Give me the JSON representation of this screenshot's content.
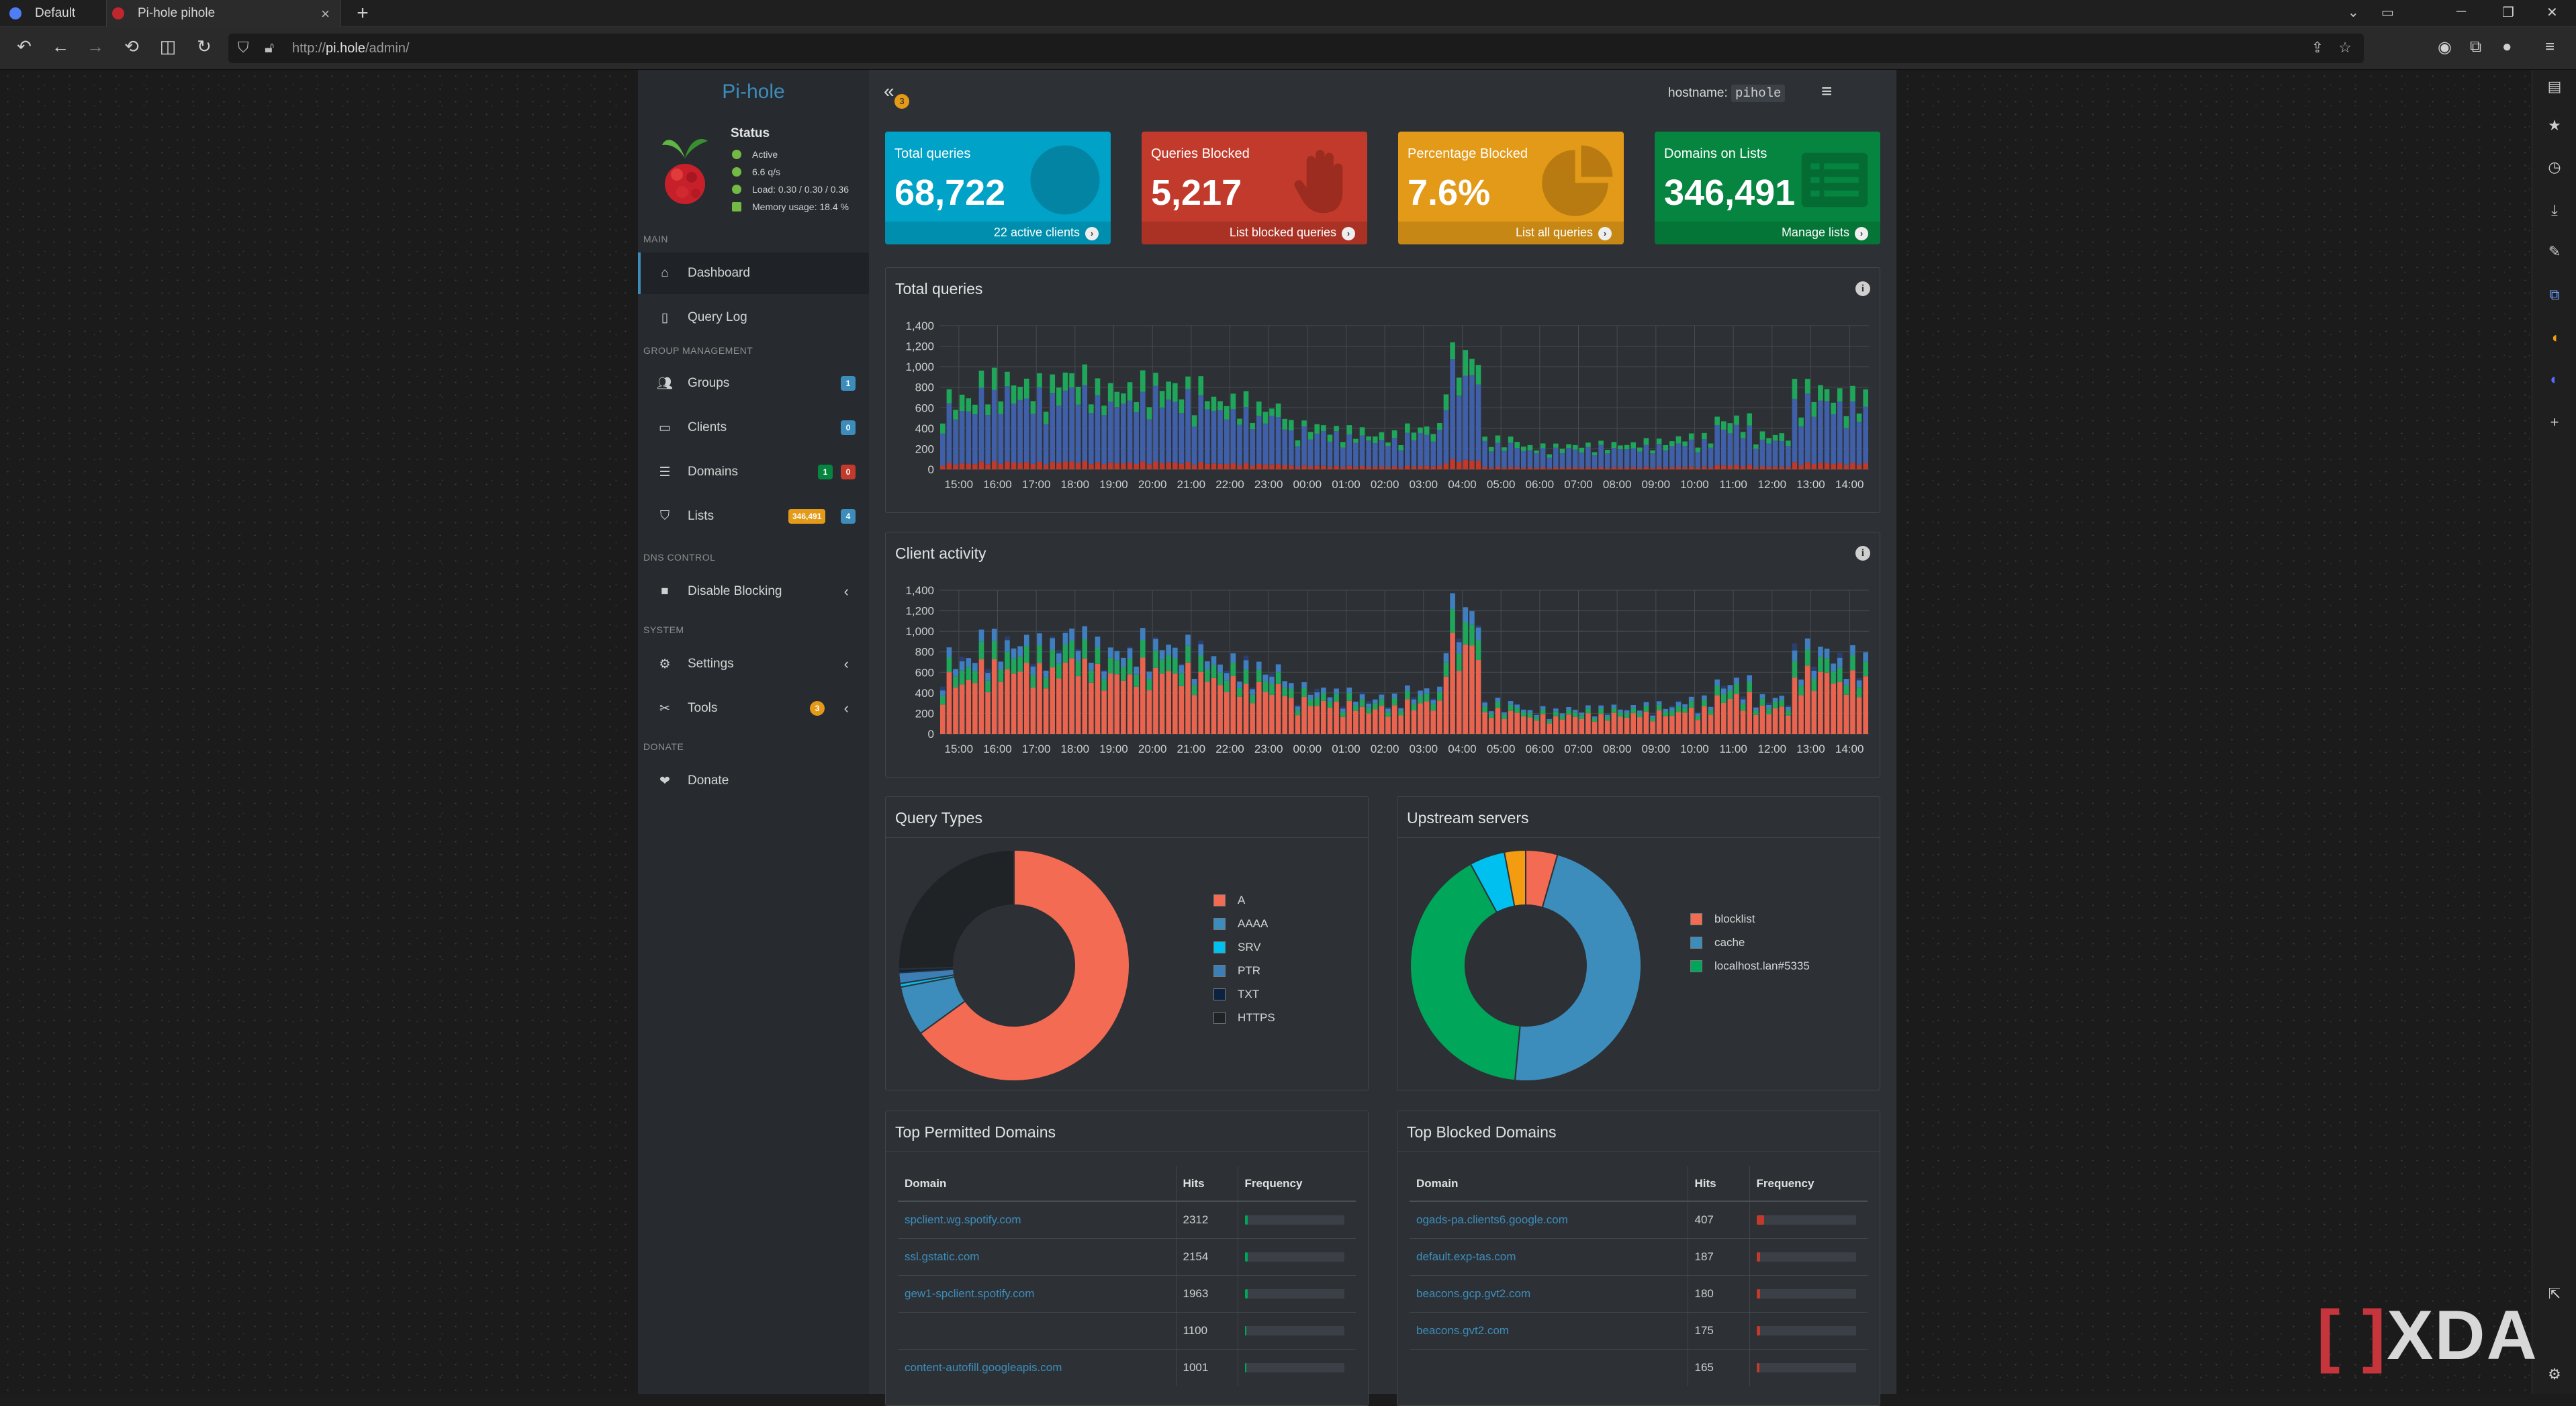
{
  "browser": {
    "tabs": [
      {
        "label": "Default"
      },
      {
        "label": "Pi-hole pihole"
      }
    ],
    "url_prefix": "http://",
    "url_host": "pi.hole",
    "url_path": "/admin/"
  },
  "app": {
    "logo_a": "Pi-",
    "logo_b": "hole",
    "status": {
      "title": "Status",
      "lines": [
        "Active",
        "6.6 q/s",
        "Load: 0.30 / 0.30 / 0.36",
        "Memory usage: 18.4 %"
      ]
    },
    "hostname_label": "hostname:",
    "hostname": "pihole",
    "collapse_badge": "3"
  },
  "sidebar": {
    "sections": {
      "main": "MAIN",
      "group": "GROUP MANAGEMENT",
      "dns": "DNS CONTROL",
      "system": "SYSTEM",
      "donate": "DONATE"
    },
    "items": [
      {
        "label": "Dashboard",
        "icon": "home-icon"
      },
      {
        "label": "Query Log",
        "icon": "file-icon"
      },
      {
        "label": "Groups",
        "icon": "users-icon",
        "badge": "1"
      },
      {
        "label": "Clients",
        "icon": "laptop-icon",
        "badge": "0"
      },
      {
        "label": "Domains",
        "icon": "list-icon",
        "badge_a": "1",
        "badge_b": "0"
      },
      {
        "label": "Lists",
        "icon": "shield-icon",
        "badge_a": "346,491",
        "badge_b": "4"
      },
      {
        "label": "Disable Blocking",
        "icon": "stop-icon"
      },
      {
        "label": "Settings",
        "icon": "gears-icon"
      },
      {
        "label": "Tools",
        "icon": "tools-icon",
        "badge": "3"
      },
      {
        "label": "Donate",
        "icon": "donate-icon"
      }
    ]
  },
  "stats": [
    {
      "label": "Total queries",
      "value": "68,722",
      "footer": "22 active clients",
      "color": "#00a2c7"
    },
    {
      "label": "Queries Blocked",
      "value": "5,217",
      "footer": "List blocked queries",
      "color": "#c23a2b"
    },
    {
      "label": "Percentage Blocked",
      "value": "7.6%",
      "footer": "List all queries",
      "color": "#e39a18"
    },
    {
      "label": "Domains on Lists",
      "value": "346,491",
      "footer": "Manage lists",
      "color": "#05853f"
    }
  ],
  "panels": {
    "total_queries": "Total queries",
    "client_activity": "Client activity",
    "query_types": "Query Types",
    "upstream": "Upstream servers",
    "top_permitted": "Top Permitted Domains",
    "top_blocked": "Top Blocked Domains"
  },
  "chart_data": [
    {
      "type": "bar",
      "title": "Total queries",
      "x_ticks": [
        "15:00",
        "16:00",
        "17:00",
        "18:00",
        "19:00",
        "20:00",
        "21:00",
        "22:00",
        "23:00",
        "00:00",
        "01:00",
        "02:00",
        "03:00",
        "04:00",
        "05:00",
        "06:00",
        "07:00",
        "08:00",
        "09:00",
        "10:00",
        "11:00",
        "12:00",
        "13:00",
        "14:00"
      ],
      "y_ticks": [
        "0",
        "200",
        "400",
        "600",
        "800",
        "1,000",
        "1,200",
        "1,400"
      ],
      "ylim": [
        0,
        1400
      ],
      "series_colors": [
        "#c0392b",
        "#3f5fa8",
        "#1fa65a"
      ],
      "hourly_totals": [
        620,
        780,
        740,
        820,
        700,
        760,
        720,
        600,
        540,
        380,
        340,
        300,
        360,
        980,
        260,
        200,
        210,
        220,
        240,
        280,
        430,
        300,
        700,
        640
      ]
    },
    {
      "type": "bar",
      "title": "Client activity",
      "x_ticks": [
        "15:00",
        "16:00",
        "17:00",
        "18:00",
        "19:00",
        "20:00",
        "21:00",
        "22:00",
        "23:00",
        "00:00",
        "01:00",
        "02:00",
        "03:00",
        "04:00",
        "05:00",
        "06:00",
        "07:00",
        "08:00",
        "09:00",
        "10:00",
        "11:00",
        "12:00",
        "13:00",
        "14:00"
      ],
      "y_ticks": [
        "0",
        "200",
        "400",
        "600",
        "800",
        "1,000",
        "1,200",
        "1,400"
      ],
      "ylim": [
        0,
        1400
      ],
      "series_colors": [
        "#e8644f",
        "#1fa65a",
        "#3f7fc0",
        "#2c3e70"
      ],
      "hourly_totals": [
        640,
        780,
        760,
        840,
        700,
        760,
        720,
        600,
        540,
        380,
        340,
        300,
        360,
        1020,
        260,
        200,
        210,
        220,
        240,
        280,
        430,
        300,
        700,
        640
      ]
    },
    {
      "type": "pie",
      "title": "Query Types",
      "labels": [
        "A",
        "AAAA",
        "SRV",
        "PTR",
        "TXT",
        "HTTPS"
      ],
      "colors": [
        "#f46b54",
        "#3c8dbc",
        "#00c0ef",
        "#3c7fb7",
        "#0b2240",
        "#1f2326"
      ],
      "values": [
        65.0,
        7.0,
        0.5,
        1.5,
        0.5,
        25.5
      ]
    },
    {
      "type": "pie",
      "title": "Upstream servers",
      "labels": [
        "blocklist",
        "cache",
        "localhost.lan#5335"
      ],
      "colors": [
        "#f46b54",
        "#3c8dbc",
        "#00a65a"
      ],
      "values": [
        4.5,
        47.5,
        41.0
      ],
      "extra_colors": [
        "#00c0ef",
        "#f39c12"
      ],
      "extra_values": [
        5.0,
        3.0
      ]
    }
  ],
  "top_permitted": {
    "headers": [
      "Domain",
      "Hits",
      "Frequency"
    ],
    "rows": [
      {
        "domain": "spclient.wg.spotify.com",
        "hits": "2312",
        "freq": 0.03
      },
      {
        "domain": "ssl.gstatic.com",
        "hits": "2154",
        "freq": 0.03
      },
      {
        "domain": "gew1-spclient.spotify.com",
        "hits": "1963",
        "freq": 0.03
      },
      {
        "domain": "",
        "hits": "1100",
        "freq": 0.02
      },
      {
        "domain": "content-autofill.googleapis.com",
        "hits": "1001",
        "freq": 0.02
      }
    ],
    "bar_color": "#00a65a"
  },
  "top_blocked": {
    "headers": [
      "Domain",
      "Hits",
      "Frequency"
    ],
    "rows": [
      {
        "domain": "ogads-pa.clients6.google.com",
        "hits": "407",
        "freq": 0.08
      },
      {
        "domain": "default.exp-tas.com",
        "hits": "187",
        "freq": 0.04
      },
      {
        "domain": "beacons.gcp.gvt2.com",
        "hits": "180",
        "freq": 0.04
      },
      {
        "domain": "beacons.gvt2.com",
        "hits": "175",
        "freq": 0.035
      },
      {
        "domain": "",
        "hits": "165",
        "freq": 0.03
      }
    ],
    "bar_color": "#c23a2b"
  },
  "watermark": "XDA"
}
